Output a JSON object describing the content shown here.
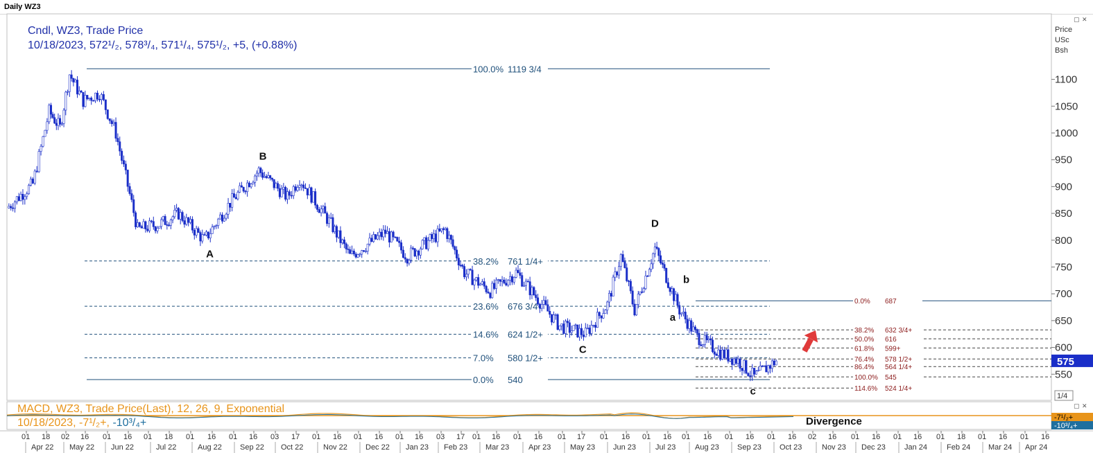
{
  "window": {
    "title": "Daily WZ3",
    "controls": [
      "▢",
      "✕"
    ]
  },
  "legend": {
    "line1": "Cndl, WZ3, Trade Price",
    "line2": "10/18/2023, 572¹/₂, 578³/₄, 571¹/₄, 575¹/₂, +5, (+0.88%)"
  },
  "macd_legend": {
    "line1": "MACD, WZ3, Trade Price(Last),  12, 26, 9, Exponential",
    "line2_date": "10/18/2023,",
    "line2_val1": "-7¹/₂+,",
    "line2_val2": "-10³/₄+"
  },
  "chart_data": {
    "type": "candlestick",
    "title": "Daily WZ3",
    "ylabel": "Price USc Bsh",
    "ylim": [
      510,
      1140
    ],
    "yticks": [
      550,
      600,
      650,
      700,
      750,
      800,
      850,
      900,
      950,
      1000,
      1050,
      1100
    ],
    "last_price": "575",
    "pagination": "1/4",
    "month_labels": [
      "Apr 22",
      "May 22",
      "Jun 22",
      "Jul 22",
      "Aug 22",
      "Sep 22",
      "Oct 22",
      "Nov 22",
      "Dec 22",
      "Jan 23",
      "Feb 23",
      "Mar 23",
      "Apr 23",
      "May 23",
      "Jun 23",
      "Jul 23",
      "Aug 23",
      "Sep 23",
      "Oct 23",
      "Nov 23",
      "Dec 23",
      "Jan 24",
      "Feb 24",
      "Mar 24",
      "Apr 24"
    ],
    "day_labels": [
      "01",
      "18",
      "02",
      "16",
      "01",
      "16",
      "01",
      "18",
      "01",
      "16",
      "01",
      "16",
      "03",
      "17",
      "01",
      "16",
      "01",
      "16",
      "01",
      "16",
      "03",
      "17",
      "01",
      "16",
      "01",
      "16",
      "01",
      "17",
      "01",
      "16",
      "01",
      "16",
      "01",
      "16",
      "01",
      "16",
      "01",
      "16",
      "02",
      "16",
      "01",
      "16",
      "01",
      "16",
      "01",
      "18",
      "01",
      "16",
      "01",
      "16",
      "01",
      "16",
      "01",
      "16"
    ],
    "price_path": [
      {
        "date": "2022-04-01",
        "price": 860
      },
      {
        "date": "2022-04-20",
        "price": 905
      },
      {
        "date": "2022-05-02",
        "price": 1040
      },
      {
        "date": "2022-05-10",
        "price": 1010
      },
      {
        "date": "2022-05-17",
        "price": 1110
      },
      {
        "date": "2022-05-27",
        "price": 1060
      },
      {
        "date": "2022-06-08",
        "price": 1075
      },
      {
        "date": "2022-06-20",
        "price": 1000
      },
      {
        "date": "2022-07-06",
        "price": 820
      },
      {
        "date": "2022-07-22",
        "price": 830
      },
      {
        "date": "2022-08-05",
        "price": 850
      },
      {
        "date": "2022-08-24",
        "price": 800
      },
      {
        "date": "2022-09-12",
        "price": 870
      },
      {
        "date": "2022-10-03",
        "price": 930
      },
      {
        "date": "2022-10-24",
        "price": 880
      },
      {
        "date": "2022-11-02",
        "price": 915
      },
      {
        "date": "2022-11-25",
        "price": 830
      },
      {
        "date": "2022-12-09",
        "price": 770
      },
      {
        "date": "2023-01-04",
        "price": 815
      },
      {
        "date": "2023-01-20",
        "price": 770
      },
      {
        "date": "2023-02-17",
        "price": 820
      },
      {
        "date": "2023-03-03",
        "price": 740
      },
      {
        "date": "2023-03-22",
        "price": 705
      },
      {
        "date": "2023-04-10",
        "price": 740
      },
      {
        "date": "2023-05-12",
        "price": 640
      },
      {
        "date": "2023-05-31",
        "price": 625
      },
      {
        "date": "2023-06-16",
        "price": 680
      },
      {
        "date": "2023-06-26",
        "price": 770
      },
      {
        "date": "2023-07-06",
        "price": 670
      },
      {
        "date": "2023-07-21",
        "price": 785
      },
      {
        "date": "2023-08-08",
        "price": 670
      },
      {
        "date": "2023-08-21",
        "price": 620
      },
      {
        "date": "2023-09-07",
        "price": 590
      },
      {
        "date": "2023-09-20",
        "price": 575
      },
      {
        "date": "2023-10-02",
        "price": 545
      },
      {
        "date": "2023-10-18",
        "price": 575
      }
    ],
    "fib_main": [
      {
        "label": "100.0%",
        "value_label": "1119 3/4",
        "price": 1119.75
      },
      {
        "label": "38.2%",
        "value_label": "761 1/4+",
        "price": 761.25
      },
      {
        "label": "23.6%",
        "value_label": "676 3/4+",
        "price": 676.75
      },
      {
        "label": "14.6%",
        "value_label": "624 1/2+",
        "price": 624.5
      },
      {
        "label": "7.0%",
        "value_label": "580 1/2+",
        "price": 580.5
      },
      {
        "label": "0.0%",
        "value_label": "540",
        "price": 540
      }
    ],
    "fib_secondary": [
      {
        "label": "0.0%",
        "value_label": "687",
        "price": 687
      },
      {
        "label": "38.2%",
        "value_label": "632 3/4+",
        "price": 632.75
      },
      {
        "label": "50.0%",
        "value_label": "616",
        "price": 616
      },
      {
        "label": "61.8%",
        "value_label": "599+",
        "price": 599
      },
      {
        "label": "76.4%",
        "value_label": "578 1/2+",
        "price": 578.5
      },
      {
        "label": "86.4%",
        "value_label": "564 1/4+",
        "price": 564.25
      },
      {
        "label": "100.0%",
        "value_label": "545",
        "price": 545
      },
      {
        "label": "114.6%",
        "value_label": "524 1/4+",
        "price": 524.25
      }
    ],
    "wave_labels": [
      {
        "text": "A",
        "date": "2022-08-28",
        "price": 768
      },
      {
        "text": "B",
        "date": "2022-10-06",
        "price": 950
      },
      {
        "text": "C",
        "date": "2023-05-29",
        "price": 590
      },
      {
        "text": "D",
        "date": "2023-07-21",
        "price": 825
      },
      {
        "text": "a",
        "date": "2023-08-03",
        "price": 650
      },
      {
        "text": "b",
        "date": "2023-08-13",
        "price": 720
      },
      {
        "text": "c",
        "date": "2023-10-01",
        "price": 512
      }
    ],
    "annotations": {
      "divergence": "Divergence"
    },
    "colors": {
      "candles": "#1a2ec8",
      "fib_main": "#1e4f7a",
      "fib_secondary": "#8b1a1a",
      "macd": "#e8941a",
      "signal": "#1f6f9f",
      "arrow": "#e03a3a",
      "price_tag": "#1a2ec8"
    }
  }
}
